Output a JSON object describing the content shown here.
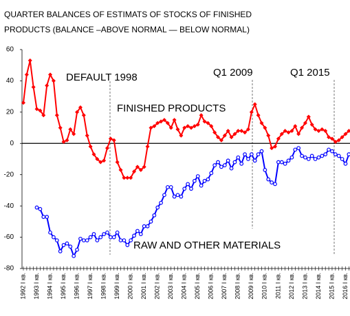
{
  "chart_data": {
    "type": "line",
    "title_lines": [
      "QUARTER BALANCES OF ESTIMATS OF STOCKS OF FINISHED",
      "PRODUCTS (BALANCE –ABOVE NORMAL — BELOW NORMAL)"
    ],
    "annotations": [
      "DEFAULT 1998",
      "Q1 2009",
      "Q1 2015",
      "FINISHED PRODUCTS",
      "RAW AND OTHER MATERIALS"
    ],
    "categories": [
      "1992 I кв.",
      null,
      null,
      null,
      "1993 I кв.",
      null,
      null,
      null,
      "1994 I кв.",
      null,
      null,
      null,
      "1995 I кв.",
      null,
      null,
      null,
      "1996 I кв.",
      null,
      null,
      null,
      "1997 I кв.",
      null,
      null,
      null,
      "1998 I кв.",
      null,
      null,
      null,
      "1999 I кв.",
      null,
      null,
      null,
      "2000 I кв.",
      null,
      null,
      null,
      "2001 I кв.",
      null,
      null,
      null,
      "2002 I кв.",
      null,
      null,
      null,
      "2003 I кв.",
      null,
      null,
      null,
      "2004 I кв.",
      null,
      null,
      null,
      "2005 I кв.",
      null,
      null,
      null,
      "2006 I кв.",
      null,
      null,
      null,
      "2007 I кв.",
      null,
      null,
      null,
      "2008 I кв.",
      null,
      null,
      null,
      "2009 I кв.",
      null,
      null,
      null,
      "2010 I кв.",
      null,
      null,
      null,
      "2011 I кв.",
      null,
      null,
      null,
      "2012 I кв.",
      null,
      null,
      null,
      "2013 I кв.",
      null,
      null,
      null,
      "2014 I кв.",
      null,
      null,
      null,
      "2015 I кв.",
      null,
      null,
      null,
      "2016 I кв.",
      null
    ],
    "series": [
      {
        "name": "FINISHED PRODUCTS",
        "color": "#ff0000",
        "marker": "diamond",
        "values": [
          26,
          44,
          53,
          36,
          22,
          21,
          18,
          37,
          44,
          40,
          18,
          10,
          1,
          2,
          9,
          6,
          20,
          23,
          18,
          5,
          -2,
          -7,
          -10,
          -12,
          -11,
          -3,
          3,
          2,
          -12,
          -17,
          -22,
          -22,
          -22,
          -18,
          -15,
          -17,
          -15,
          -2,
          10,
          11,
          13,
          14,
          15,
          13,
          10,
          15,
          9,
          5,
          10,
          11,
          10,
          11,
          12,
          18,
          14,
          13,
          11,
          7,
          4,
          2,
          5,
          8,
          4,
          6,
          8,
          8,
          7,
          9,
          20,
          25,
          18,
          13,
          10,
          5,
          -3,
          -2,
          3,
          6,
          8,
          7,
          8,
          11,
          6,
          10,
          13,
          17,
          12,
          9,
          8,
          9,
          8,
          4,
          3,
          1,
          2,
          4,
          6,
          8
        ]
      },
      {
        "name": "RAW AND OTHER MATERIALS",
        "color": "#0000ff",
        "marker": "circle",
        "values": [
          null,
          null,
          null,
          null,
          -41,
          -42,
          -47,
          -47,
          -57,
          -60,
          -62,
          -69,
          -65,
          -64,
          -66,
          -72,
          -68,
          -61,
          -62,
          -62,
          -60,
          -58,
          -62,
          -60,
          -58,
          -57,
          -60,
          -60,
          -57,
          -62,
          -62,
          -65,
          -62,
          -59,
          -56,
          -58,
          -53,
          -53,
          -50,
          -46,
          -41,
          -38,
          -33,
          -28,
          -28,
          -34,
          -33,
          -34,
          -29,
          -26,
          -29,
          -24,
          -21,
          -27,
          -24,
          -23,
          -19,
          -14,
          -12,
          -15,
          -14,
          -11,
          -16,
          -12,
          -9,
          -13,
          -7,
          -10,
          -7,
          -11,
          -7,
          -5,
          -17,
          -23,
          -25,
          -26,
          -12,
          -12,
          -13,
          -11,
          -9,
          -4,
          -3,
          -8,
          -9,
          -10,
          -8,
          -10,
          -9,
          -8,
          -7,
          -4,
          -5,
          -7,
          -8,
          -10,
          -13,
          -7
        ]
      }
    ],
    "ylim": [
      -80,
      60
    ],
    "yticks": [
      -80,
      -60,
      -40,
      -20,
      0,
      20,
      40,
      60
    ]
  }
}
